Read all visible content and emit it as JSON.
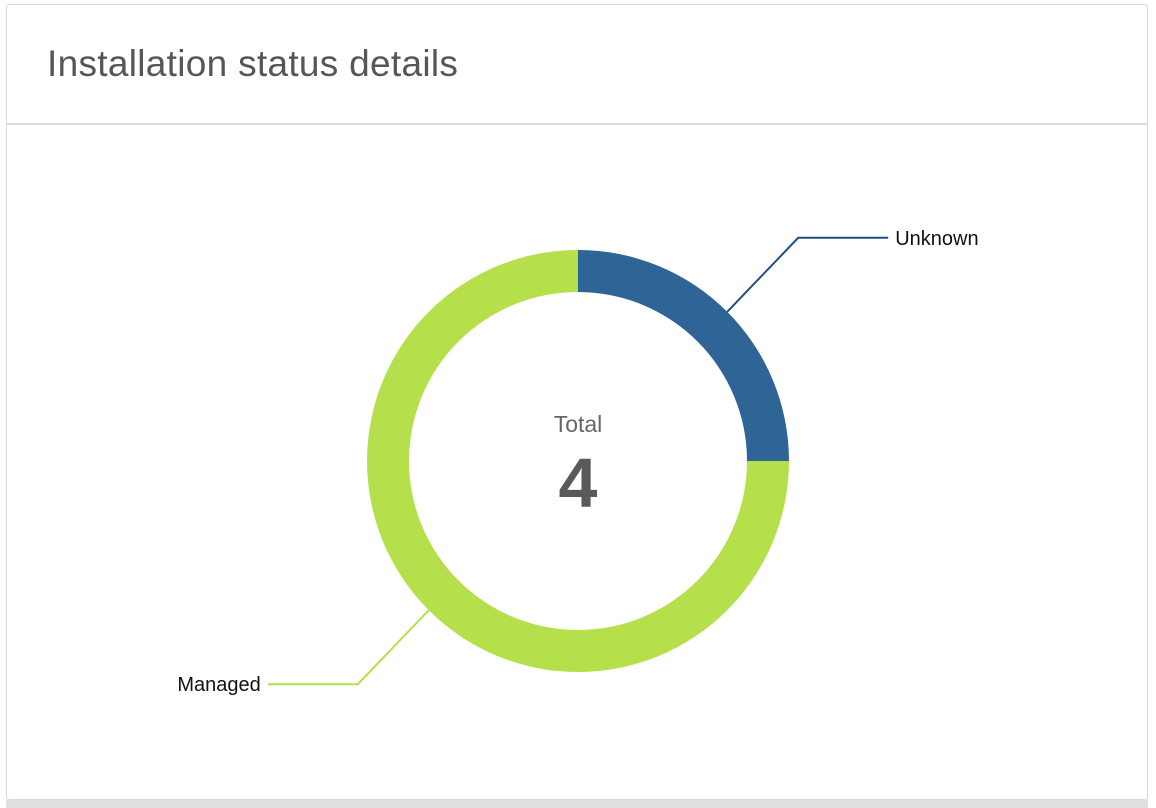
{
  "chart_data": {
    "type": "donut",
    "title": "Installation status details",
    "categories": [
      "Unknown",
      "Managed"
    ],
    "values": [
      1,
      3
    ],
    "colors": [
      "#2f6497",
      "#b5e04b"
    ],
    "leader_colors": [
      "#1f4e85",
      "#b5e04b"
    ],
    "center_label": "Total",
    "total": 4
  }
}
